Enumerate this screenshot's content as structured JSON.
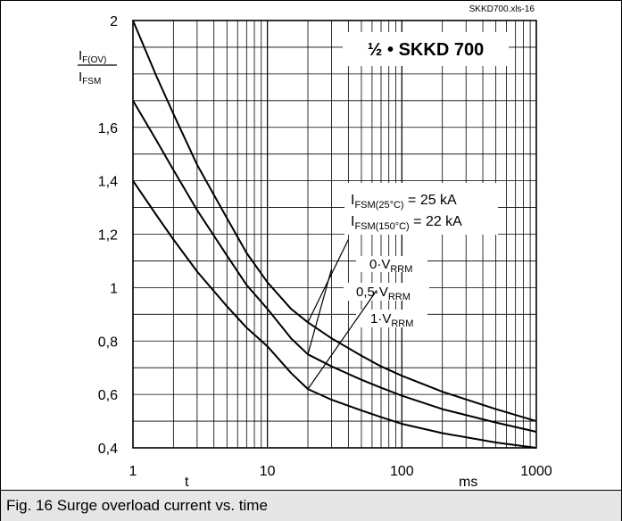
{
  "chart_data": {
    "type": "line",
    "source_label": "SKKD700.xls-16",
    "title": "½ • SKKD 700",
    "xscale": "log",
    "xlim": [
      1,
      1000
    ],
    "ylim": [
      0.4,
      2
    ],
    "grid": true,
    "xticks": [
      {
        "value": 1,
        "label": "1"
      },
      {
        "value": 10,
        "label": "10"
      },
      {
        "value": 100,
        "label": "100"
      },
      {
        "value": 1000,
        "label": "1000"
      }
    ],
    "yticks": [
      {
        "value": 0.4,
        "label": "0,4"
      },
      {
        "value": 0.6,
        "label": "0,6"
      },
      {
        "value": 0.8,
        "label": "0,8"
      },
      {
        "value": 1.0,
        "label": "1"
      },
      {
        "value": 1.2,
        "label": "1,2"
      },
      {
        "value": 1.4,
        "label": "1,4"
      },
      {
        "value": 1.6,
        "label": "1,6"
      },
      {
        "value": 2.0,
        "label": "2"
      }
    ],
    "xlabel": "t",
    "xunit": "ms",
    "ylabel": {
      "numerator": "I",
      "numerator_sub": "F(OV)",
      "denominator": "I",
      "denominator_sub": "FSM"
    },
    "annotations": {
      "ifsm_25": {
        "main": "I",
        "sub": "FSM(25°C)",
        "value": "= 25 kA"
      },
      "ifsm_150": {
        "main": "I",
        "sub": "FSM(150°C)",
        "value": "= 22 kA"
      }
    },
    "series": [
      {
        "name": "0·V",
        "name_sub": "RRM",
        "label_point": [
          40,
          1.18
        ],
        "x": [
          1,
          1.5,
          2,
          3,
          5,
          7,
          10,
          15,
          20,
          30,
          50,
          70,
          100,
          200,
          500,
          1000
        ],
        "y": [
          2.0,
          1.79,
          1.65,
          1.46,
          1.26,
          1.13,
          1.02,
          0.92,
          0.87,
          0.81,
          0.745,
          0.705,
          0.67,
          0.61,
          0.545,
          0.5
        ]
      },
      {
        "name": "0,5·V",
        "name_sub": "RRM",
        "label_point": [
          30,
          1.07
        ],
        "x": [
          1,
          1.5,
          2,
          3,
          5,
          7,
          10,
          15,
          20,
          30,
          50,
          70,
          100,
          200,
          500,
          1000
        ],
        "y": [
          1.7,
          1.55,
          1.44,
          1.29,
          1.12,
          1.01,
          0.92,
          0.81,
          0.75,
          0.705,
          0.655,
          0.625,
          0.595,
          0.545,
          0.495,
          0.46
        ]
      },
      {
        "name": "1·V",
        "name_sub": "RRM",
        "label_point": [
          65,
          0.99
        ],
        "x": [
          1,
          1.5,
          2,
          3,
          5,
          7,
          10,
          15,
          20,
          30,
          50,
          70,
          100,
          200,
          500,
          1000
        ],
        "y": [
          1.4,
          1.27,
          1.18,
          1.06,
          0.93,
          0.85,
          0.78,
          0.68,
          0.62,
          0.58,
          0.54,
          0.515,
          0.49,
          0.455,
          0.42,
          0.4
        ]
      }
    ]
  },
  "caption": "Fig. 16 Surge overload current vs. time"
}
